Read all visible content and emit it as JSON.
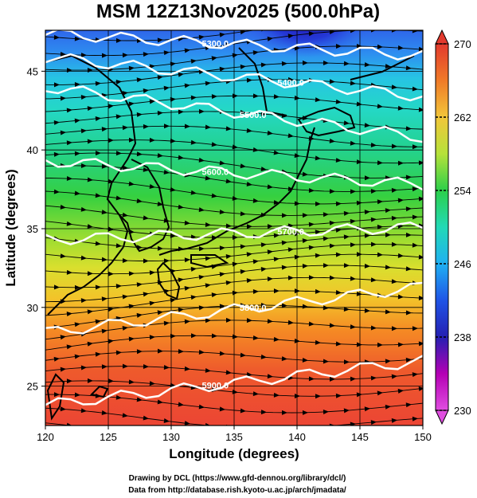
{
  "title": "MSM 12Z13Nov2025 (500.0hPa)",
  "xlabel": "Longitude (degrees)",
  "ylabel": "Latitude  (degrees)",
  "credits": [
    "Drawing by DCL (https://www.gfd-dennou.org/library/dcl/)",
    "Data from http://database.rish.kyoto-u.ac.jp/arch/jmadata/"
  ],
  "map": {
    "lon_range": [
      120,
      150
    ],
    "lat_range": [
      22.5,
      47.6
    ],
    "x_ticks": [
      "120",
      "125",
      "130",
      "135",
      "140",
      "145",
      "150"
    ],
    "y_ticks": [
      "25",
      "30",
      "35",
      "40",
      "45"
    ]
  },
  "colorbar": {
    "min": 230,
    "max": 270,
    "labels": [
      "270",
      "262",
      "254",
      "246",
      "238",
      "230"
    ],
    "colors": [
      "#e23a2e",
      "#f07a28",
      "#f2c63a",
      "#b6e23a",
      "#2ccf4a",
      "#22d9b6",
      "#1fb0f2",
      "#1f54e6",
      "#2520b2",
      "#b400b4",
      "#e04ee0"
    ]
  },
  "contours": [
    {
      "label": "5900.0",
      "lat_start": 23.8,
      "lat_end": 26.6
    },
    {
      "label": "5800.0",
      "lat_start": 28.4,
      "lat_end": 31.3
    },
    {
      "label": "5700.0",
      "lat_start": 34.3,
      "lat_end": 35.1
    },
    {
      "label": "5600.0",
      "lat_start": 39.3,
      "lat_end": 37.8
    },
    {
      "label": "5500.0",
      "lat_start": 44.0,
      "lat_end": 40.8
    },
    {
      "label": "5400.0",
      "lat_start": 45.9,
      "lat_end": 43.4
    },
    {
      "label": "5300.0",
      "lat_start": 47.4,
      "lat_end": 46.0
    }
  ]
}
